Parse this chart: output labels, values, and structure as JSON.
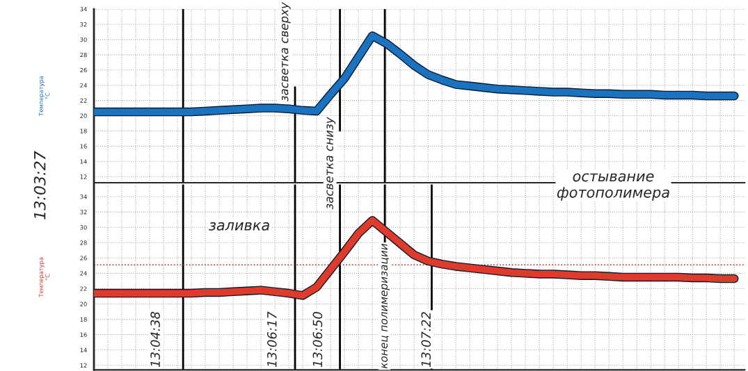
{
  "chart_data": [
    {
      "type": "line",
      "ylabel": "Температура\n°C",
      "categories": [
        null,
        null,
        null,
        null,
        null,
        null,
        null,
        null,
        null,
        null,
        null,
        null,
        null,
        null,
        null,
        null,
        null,
        null,
        null,
        null,
        null,
        null,
        null,
        null,
        null,
        null,
        null,
        null,
        null,
        null,
        null,
        null,
        null,
        null,
        null,
        null,
        null,
        null,
        null,
        null,
        null,
        null,
        null,
        null,
        null,
        null,
        null
      ],
      "series": [
        {
          "color": "#1a73c0",
          "values": [
            20.5,
            20.5,
            20.5,
            20.5,
            20.5,
            20.5,
            20.5,
            20.5,
            20.6,
            20.7,
            20.8,
            20.9,
            21.0,
            21.0,
            20.9,
            20.7,
            20.6,
            22.8,
            24.9,
            27.7,
            30.5,
            29.5,
            28.1,
            26.6,
            25.4,
            24.7,
            24.1,
            23.9,
            23.7,
            23.5,
            23.4,
            23.3,
            23.2,
            23.1,
            23.1,
            23.0,
            22.9,
            22.9,
            22.8,
            22.8,
            22.8,
            22.7,
            22.7,
            22.7,
            22.6,
            22.6,
            22.6
          ]
        }
      ],
      "ylim": [
        11.2,
        34
      ],
      "yticks": [
        12,
        14,
        16,
        18,
        20,
        22,
        24,
        26,
        28,
        30,
        32,
        34
      ],
      "grid": true,
      "legend": false,
      "annotations": [
        "13:03:27",
        "остывание\nфотополимера",
        "засветка сверху",
        "засветка снизу"
      ]
    },
    {
      "type": "line",
      "ylabel": "Температура\n°C",
      "categories": [
        null,
        null,
        null,
        null,
        null,
        null,
        null,
        null,
        null,
        null,
        null,
        null,
        null,
        null,
        null,
        null,
        null,
        null,
        null,
        null,
        null,
        null,
        null,
        null,
        null,
        null,
        null,
        null,
        null,
        null,
        null,
        null,
        null,
        null,
        null,
        null,
        null,
        null,
        null,
        null,
        null,
        null,
        null,
        null,
        null,
        null,
        null
      ],
      "series": [
        {
          "color": "#e03a2a",
          "values": [
            21.4,
            21.4,
            21.4,
            21.4,
            21.4,
            21.4,
            21.4,
            21.4,
            21.5,
            21.5,
            21.6,
            21.7,
            21.8,
            21.6,
            21.4,
            21.1,
            22.2,
            24.5,
            26.8,
            29.2,
            30.9,
            29.4,
            27.9,
            26.4,
            25.6,
            25.2,
            24.9,
            24.7,
            24.5,
            24.3,
            24.1,
            24.0,
            23.9,
            23.9,
            23.8,
            23.7,
            23.7,
            23.6,
            23.5,
            23.5,
            23.5,
            23.5,
            23.5,
            23.4,
            23.4,
            23.3,
            23.3
          ]
        }
      ],
      "ylim": [
        11.4,
        35.6
      ],
      "yticks": [
        12,
        14,
        16,
        18,
        20,
        22,
        24,
        26,
        28,
        30,
        32,
        34
      ],
      "grid": true,
      "legend": false,
      "ref_lines": [
        {
          "axis": "y",
          "value": 25.1,
          "color": "#a03030",
          "line_style": "dotted"
        }
      ],
      "annotations": [
        "заливка",
        "13:04:38",
        "13:06:17",
        "13:06:50",
        "конец полимеризации",
        "13:07:22"
      ]
    }
  ]
}
